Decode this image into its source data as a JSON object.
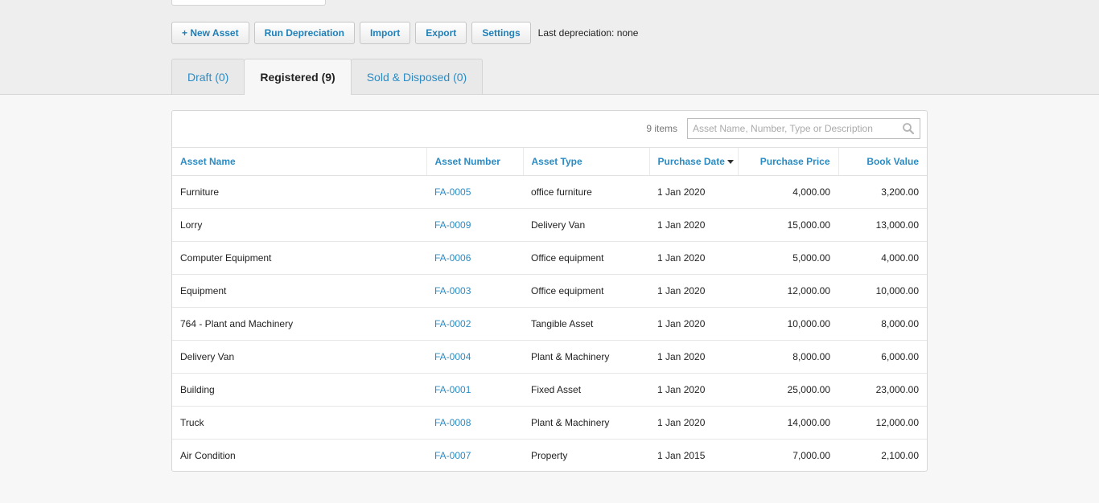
{
  "toolbar": {
    "new_asset": "+ New Asset",
    "run_depreciation": "Run Depreciation",
    "import": "Import",
    "export": "Export",
    "settings": "Settings",
    "last_depreciation": "Last depreciation: none"
  },
  "tabs": [
    {
      "label": "Draft (0)",
      "active": false
    },
    {
      "label": "Registered (9)",
      "active": true
    },
    {
      "label": "Sold & Disposed (0)",
      "active": false
    }
  ],
  "list": {
    "item_count": "9 items",
    "search_placeholder": "Asset Name, Number, Type or Description",
    "search_value": "",
    "columns": [
      "Asset Name",
      "Asset Number",
      "Asset Type",
      "Purchase Date",
      "Purchase Price",
      "Book Value"
    ],
    "sorted_column": "Purchase Date",
    "rows": [
      {
        "name": "Furniture",
        "number": "FA-0005",
        "type": "office furniture",
        "date": "1 Jan 2020",
        "price": "4,000.00",
        "book": "3,200.00"
      },
      {
        "name": "Lorry",
        "number": "FA-0009",
        "type": "Delivery Van",
        "date": "1 Jan 2020",
        "price": "15,000.00",
        "book": "13,000.00"
      },
      {
        "name": "Computer Equipment",
        "number": "FA-0006",
        "type": "Office equipment",
        "date": "1 Jan 2020",
        "price": "5,000.00",
        "book": "4,000.00"
      },
      {
        "name": "Equipment",
        "number": "FA-0003",
        "type": "Office equipment",
        "date": "1 Jan 2020",
        "price": "12,000.00",
        "book": "10,000.00"
      },
      {
        "name": "764 - Plant and Machinery",
        "number": "FA-0002",
        "type": "Tangible Asset",
        "date": "1 Jan 2020",
        "price": "10,000.00",
        "book": "8,000.00"
      },
      {
        "name": "Delivery Van",
        "number": "FA-0004",
        "type": "Plant & Machinery",
        "date": "1 Jan 2020",
        "price": "8,000.00",
        "book": "6,000.00"
      },
      {
        "name": "Building",
        "number": "FA-0001",
        "type": "Fixed Asset",
        "date": "1 Jan 2020",
        "price": "25,000.00",
        "book": "23,000.00"
      },
      {
        "name": "Truck",
        "number": "FA-0008",
        "type": "Plant & Machinery",
        "date": "1 Jan 2020",
        "price": "14,000.00",
        "book": "12,000.00"
      },
      {
        "name": "Air Condition",
        "number": "FA-0007",
        "type": "Property",
        "date": "1 Jan 2015",
        "price": "7,000.00",
        "book": "2,100.00"
      }
    ]
  },
  "icons": {
    "search": "search-icon",
    "sort": "sort-desc-icon"
  },
  "colors": {
    "link": "#2b8cc4",
    "text": "#222222",
    "background": "#eeeeee"
  }
}
